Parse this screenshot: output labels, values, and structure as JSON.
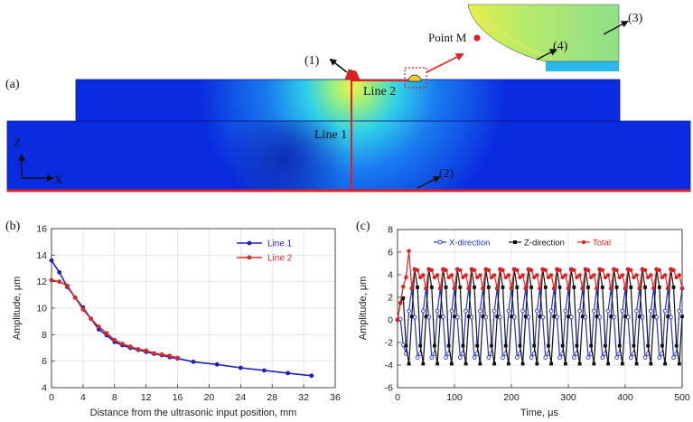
{
  "panel_a": {
    "panel_label": "(a)",
    "callouts": [
      "(1)",
      "(2)",
      "(3)",
      "(4)"
    ],
    "line1_label": "Line 1",
    "line2_label": "Line 2",
    "point_label": "Point M",
    "axis_z": "Z",
    "axis_x": "X",
    "colors": {
      "field_blue": "#0a2ce0",
      "hot": "#e8f04a",
      "line_red": "#e02020"
    }
  },
  "chart_data": [
    {
      "panel_label": "(b)",
      "type": "line",
      "title": "",
      "xlabel": "Distance from the ultrasonic input position, mm",
      "ylabel": "Amplitude, μm",
      "xlim": [
        0,
        36
      ],
      "ylim": [
        4,
        16
      ],
      "xticks": [
        "0",
        "4",
        "8",
        "12",
        "16",
        "20",
        "24",
        "28",
        "32",
        "36"
      ],
      "yticks": [
        "4",
        "6",
        "8",
        "10",
        "12",
        "14",
        "16"
      ],
      "legend_position": "top-right",
      "series": [
        {
          "name": "Line 1",
          "color": "#1f1fbf",
          "x": [
            0,
            1,
            2,
            3,
            4,
            5,
            6,
            7,
            8,
            9,
            10,
            11,
            12,
            13,
            14,
            15,
            16,
            18,
            21,
            24,
            27,
            30,
            33
          ],
          "y": [
            13.6,
            12.7,
            11.6,
            10.8,
            10.05,
            9.2,
            8.4,
            7.95,
            7.45,
            7.2,
            7.0,
            6.85,
            6.7,
            6.55,
            6.45,
            6.3,
            6.2,
            5.95,
            5.75,
            5.5,
            5.3,
            5.1,
            4.9
          ]
        },
        {
          "name": "Line 2",
          "color": "#d42a2a",
          "x": [
            0,
            1,
            2,
            3,
            4,
            5,
            6,
            7,
            8,
            9,
            10,
            11,
            12,
            13,
            14,
            15,
            16
          ],
          "y": [
            12.1,
            12.0,
            11.7,
            10.8,
            9.9,
            9.2,
            8.6,
            8.1,
            7.6,
            7.3,
            7.1,
            6.9,
            6.8,
            6.6,
            6.5,
            6.4,
            6.25
          ]
        }
      ]
    },
    {
      "panel_label": "(c)",
      "type": "line",
      "title": "",
      "xlabel": "Time, μs",
      "ylabel": "Amplitude, μm",
      "xlim": [
        0,
        500
      ],
      "ylim": [
        -6,
        8
      ],
      "xticks": [
        "0",
        "100",
        "200",
        "300",
        "400",
        "500"
      ],
      "yticks": [
        "-6",
        "-4",
        "-2",
        "0",
        "2",
        "4",
        "6",
        "8"
      ],
      "legend_position": "top",
      "period_us": 25,
      "sample_step_us": 5,
      "series": [
        {
          "name": "X-direction",
          "color": "#2233cc",
          "marker": "open-circle",
          "waveform": {
            "amplitude": 3.3,
            "offset": -0.5,
            "phase_deg": 95,
            "rise_time_us": 15
          }
        },
        {
          "name": "Z-direction",
          "color": "#111111",
          "marker": "square",
          "waveform": {
            "amplitude": 4.4,
            "offset": 0.3,
            "phase_deg": 0,
            "rise_time_us": 15
          }
        },
        {
          "name": "Total",
          "color": "#e02020",
          "marker": "filled-circle",
          "waveform": {
            "envelope_of": [
              "X-direction",
              "Z-direction"
            ],
            "peak_first_us": 20,
            "peak_first_value": 6.1
          }
        }
      ]
    }
  ]
}
